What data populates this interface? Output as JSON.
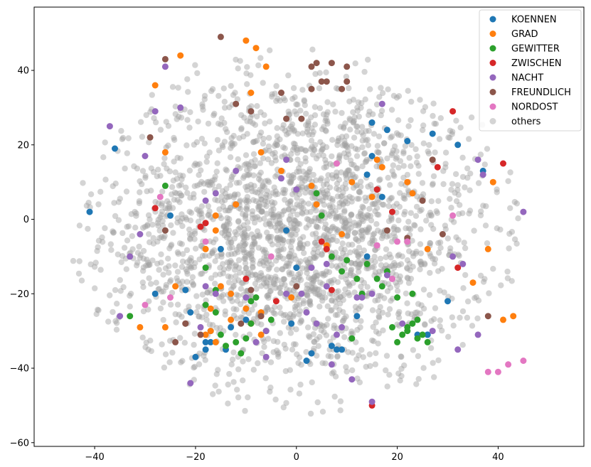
{
  "chart_data": {
    "type": "scatter",
    "title": "",
    "xlabel": "",
    "ylabel": "",
    "xlim": [
      -52,
      57
    ],
    "ylim": [
      -61,
      57
    ],
    "xticks": [
      -40,
      -20,
      0,
      20,
      40
    ],
    "yticks": [
      -60,
      -40,
      -20,
      0,
      20,
      40
    ],
    "xtick_labels": [
      "−40",
      "−20",
      "0",
      "20",
      "40"
    ],
    "ytick_labels": [
      "−60",
      "−40",
      "−20",
      "0",
      "20",
      "40"
    ],
    "grid": false,
    "legend_position": "top-right",
    "series": [
      {
        "name": "KOENNEN",
        "color": "#1f77b4",
        "opacity": 1.0,
        "x": [
          -36,
          -41,
          -17,
          -18,
          -28,
          -18,
          -20,
          -21,
          -14,
          -13,
          -17,
          -10,
          -15,
          -25,
          -22,
          -2,
          0,
          -1,
          3,
          2,
          7,
          8,
          9,
          12,
          14,
          15,
          15,
          17,
          14,
          18,
          22,
          26,
          27,
          32,
          30,
          37,
          26,
          24
        ],
        "y": [
          19,
          2,
          -33,
          -33,
          -20,
          -35,
          -37,
          -25,
          -35,
          -29,
          -30,
          -27,
          -8,
          1,
          -19,
          -3,
          -13,
          -28,
          -36,
          -38,
          -34,
          -35,
          -35,
          -26,
          -10,
          17,
          26,
          6,
          12,
          24,
          21,
          -31,
          23,
          20,
          -22,
          13,
          -31,
          -31
        ]
      },
      {
        "name": "GRAD",
        "color": "#ff7f0e",
        "opacity": 1.0,
        "x": [
          -10,
          -8,
          -6,
          -28,
          -23,
          -26,
          -31,
          -16,
          -18,
          -18,
          -10,
          -7,
          -13,
          -17,
          -15,
          -13,
          -9,
          -1,
          -16,
          -12,
          -7,
          -3,
          3,
          4,
          6,
          6,
          9,
          11,
          15,
          16,
          17,
          22,
          23,
          26,
          35,
          38,
          39,
          43,
          41,
          -9,
          -24,
          -17,
          -26,
          -7,
          -16
        ],
        "y": [
          48,
          46,
          41,
          36,
          44,
          18,
          -29,
          -33,
          -31,
          -8,
          -24,
          -25,
          -27,
          -30,
          -18,
          -20,
          -28,
          -21,
          1,
          4,
          18,
          13,
          9,
          4,
          -7,
          -8,
          -4,
          10,
          6,
          16,
          14,
          10,
          7,
          -8,
          -17,
          -8,
          10,
          -26,
          -27,
          34,
          -18,
          -24,
          -29,
          -31,
          -3
        ]
      },
      {
        "name": "GEWITTER",
        "color": "#2ca02c",
        "opacity": 1.0,
        "x": [
          -33,
          -26,
          -18,
          -18,
          -16,
          -15,
          -14,
          -12,
          -11,
          -10,
          -9,
          -9,
          -8,
          -6,
          -5,
          4,
          5,
          7,
          9,
          10,
          11,
          12,
          13,
          14,
          16,
          17,
          18,
          19,
          20,
          21,
          22,
          23,
          24,
          24,
          25,
          26,
          22,
          23,
          20,
          -16
        ],
        "y": [
          -26,
          9,
          -13,
          -23,
          -25,
          -31,
          -34,
          -33,
          -36,
          -32,
          -28,
          -22,
          -21,
          -30,
          -27,
          7,
          1,
          -10,
          -14,
          -11,
          -32,
          -16,
          -20,
          -12,
          -16,
          -18,
          -14,
          -29,
          -33,
          -31,
          -30,
          -28,
          -27,
          -32,
          -31,
          -33,
          -29,
          -20,
          -21,
          -19
        ]
      },
      {
        "name": "ZWISCHEN",
        "color": "#d62728",
        "opacity": 1.0,
        "x": [
          -19,
          -18,
          -10,
          -28,
          -4,
          7,
          6,
          5,
          16,
          15,
          28,
          31,
          32,
          41,
          19
        ],
        "y": [
          -2,
          -1,
          -16,
          3,
          -22,
          -19,
          -8,
          -6,
          8,
          -50,
          14,
          29,
          -13,
          15,
          2
        ]
      },
      {
        "name": "NACHT",
        "color": "#9467bd",
        "opacity": 1.0,
        "x": [
          -37,
          -35,
          -26,
          -28,
          -23,
          -30,
          -31,
          -33,
          -21,
          -18,
          -19,
          -16,
          -16,
          -18,
          -12,
          -10,
          -8,
          -6,
          -3,
          -2,
          -2,
          1,
          2,
          3,
          4,
          6,
          6,
          7,
          8,
          9,
          11,
          12,
          13,
          15,
          15,
          17,
          18,
          19,
          21,
          27,
          31,
          32,
          33,
          36,
          36,
          37,
          45,
          -6,
          0
        ],
        "y": [
          25,
          -26,
          41,
          29,
          30,
          17,
          -4,
          -10,
          -44,
          -18,
          -29,
          -20,
          7,
          5,
          13,
          -21,
          -33,
          -37,
          11,
          -20,
          16,
          -20,
          -25,
          -13,
          -28,
          -12,
          -18,
          -39,
          -31,
          -29,
          -43,
          -21,
          -21,
          -20,
          -49,
          31,
          -15,
          -16,
          -28,
          -30,
          -10,
          -35,
          -12,
          -31,
          16,
          12,
          2,
          -30,
          8
        ]
      },
      {
        "name": "FREUNDLICH",
        "color": "#8c564b",
        "opacity": 1.0,
        "x": [
          -26,
          -15,
          -12,
          -9,
          -26,
          -22,
          -29,
          -22,
          -11,
          -9,
          -7,
          -3,
          1,
          3,
          3,
          4,
          5,
          6,
          7,
          9,
          10,
          10,
          18,
          22,
          25,
          27,
          29,
          38,
          -2,
          0,
          -19,
          -24
        ],
        "y": [
          43,
          49,
          31,
          29,
          -3,
          -28,
          22,
          -28,
          -28,
          -19,
          -26,
          34,
          27,
          35,
          41,
          42,
          37,
          37,
          42,
          35,
          37,
          41,
          -3,
          -5,
          5,
          16,
          -4,
          -26,
          27,
          -18,
          -31,
          -33
        ]
      },
      {
        "name": "NORDOST",
        "color": "#e377c2",
        "opacity": 1.0,
        "x": [
          -27,
          -30,
          -25,
          -18,
          -5,
          8,
          16,
          20,
          22,
          19,
          38,
          40,
          42,
          45,
          31
        ],
        "y": [
          6,
          -23,
          -21,
          -6,
          -10,
          15,
          -7,
          -6,
          -6,
          -16,
          -41,
          -41,
          -39,
          -38,
          1
        ]
      }
    ],
    "others": {
      "name": "others",
      "color": "#a0a0a0",
      "opacity": 0.45,
      "count": 2400
    }
  }
}
